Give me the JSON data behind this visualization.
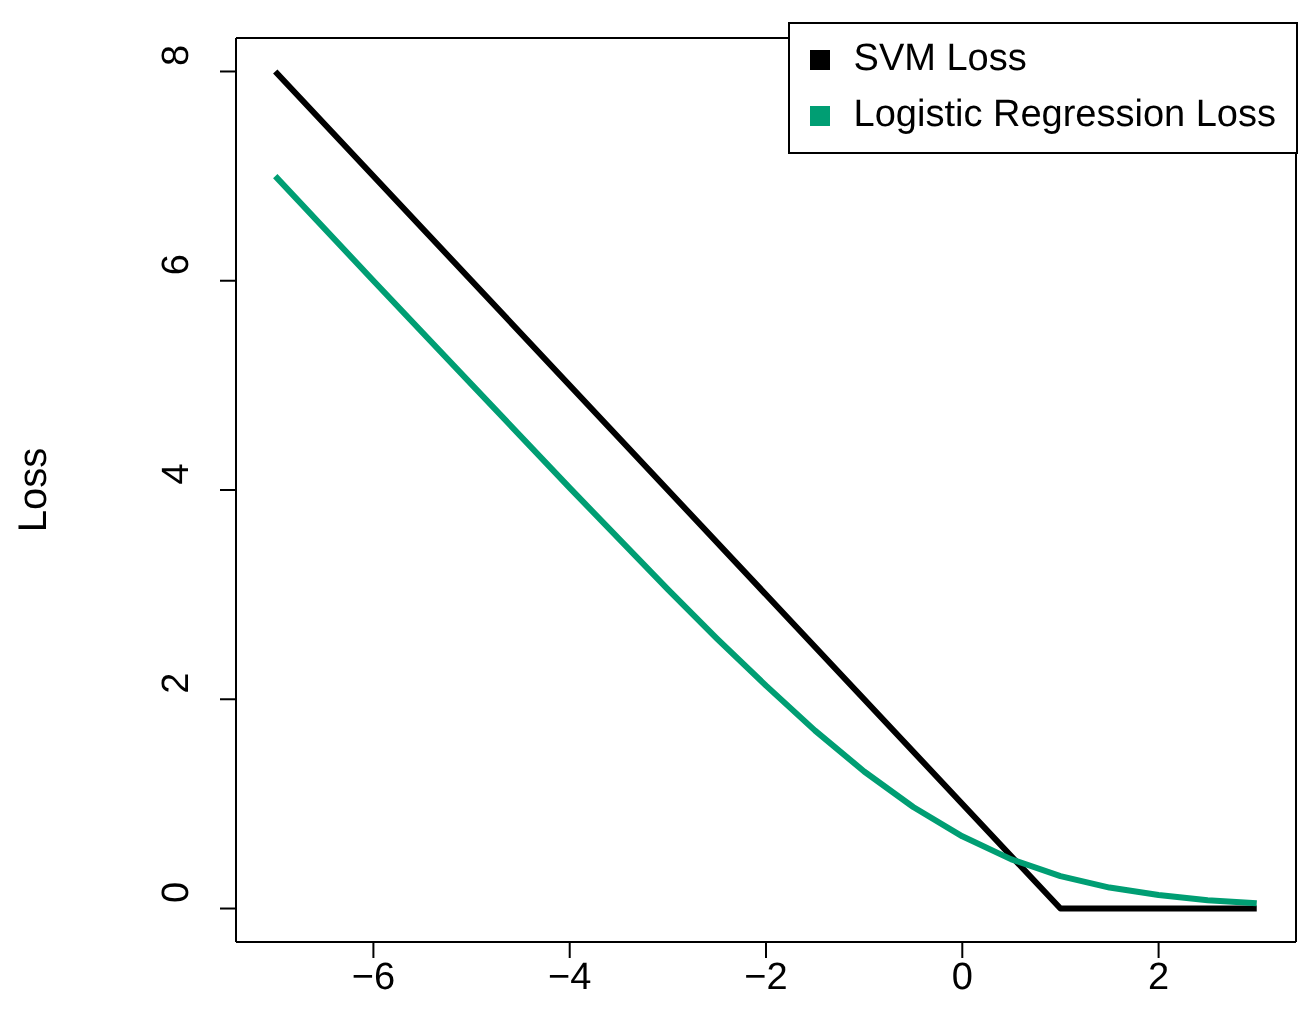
{
  "chart_data": {
    "type": "line",
    "ylabel": "Loss",
    "series": [
      {
        "name": "SVM Loss",
        "color": "#000000",
        "x": [
          -7,
          1,
          3
        ],
        "values": [
          8,
          0,
          0
        ]
      },
      {
        "name": "Logistic Regression Loss",
        "color": "#009e73",
        "x": [
          -7,
          -6,
          -5,
          -4,
          -3,
          -2.5,
          -2,
          -1.5,
          -1,
          -0.5,
          0,
          0.5,
          1,
          1.5,
          2,
          2.5,
          3
        ],
        "values": [
          7.0,
          6.0,
          5.01,
          4.02,
          3.05,
          2.58,
          2.13,
          1.7,
          1.31,
          0.97,
          0.69,
          0.47,
          0.31,
          0.2,
          0.13,
          0.08,
          0.05
        ]
      }
    ],
    "xlim": [
      -7.4,
      3.4
    ],
    "xticks": [
      {
        "value": -6,
        "label": "−6"
      },
      {
        "value": -4,
        "label": "−4"
      },
      {
        "value": -2,
        "label": "−2"
      },
      0,
      2
    ],
    "ylim": [
      -0.32,
      8.32
    ],
    "yticks": [
      0,
      2,
      4,
      6,
      8
    ],
    "legend": "top right",
    "marker": "none",
    "line_style": "solid"
  }
}
